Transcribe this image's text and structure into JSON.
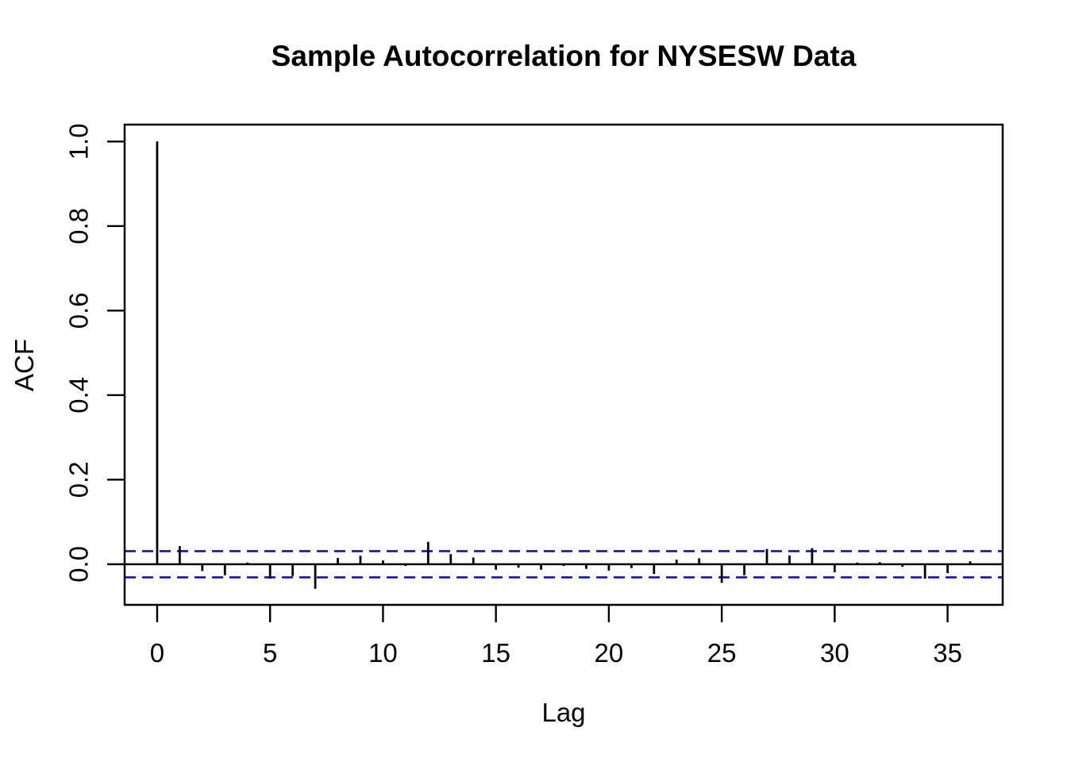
{
  "chart": {
    "title": "Sample Autocorrelation for NYSESW Data",
    "xlabel": "Lag",
    "ylabel": "ACF"
  },
  "chart_data": {
    "type": "bar",
    "subtype": "acf-stem-plot",
    "title": "Sample Autocorrelation for NYSESW Data",
    "xlabel": "Lag",
    "ylabel": "ACF",
    "x": [
      0,
      1,
      2,
      3,
      4,
      5,
      6,
      7,
      8,
      9,
      10,
      11,
      12,
      13,
      14,
      15,
      16,
      17,
      18,
      19,
      20,
      21,
      22,
      23,
      24,
      25,
      26,
      27,
      28,
      29,
      30,
      31,
      32,
      33,
      34,
      35,
      36
    ],
    "values": [
      1.0,
      0.043,
      -0.016,
      -0.026,
      0.004,
      -0.034,
      -0.028,
      -0.058,
      0.015,
      0.02,
      0.009,
      -0.004,
      0.053,
      0.024,
      0.016,
      -0.013,
      -0.008,
      -0.013,
      -0.004,
      -0.011,
      -0.015,
      -0.009,
      -0.023,
      0.011,
      0.014,
      -0.044,
      -0.026,
      0.036,
      0.021,
      0.038,
      -0.019,
      0.004,
      0.005,
      -0.006,
      -0.034,
      -0.021,
      0.007
    ],
    "confidence_bound": 0.031,
    "confidence_line_style": "dashed",
    "confidence_line_color": "#0000EE",
    "bar_color": "#000000",
    "x_ticks": [
      "0",
      "5",
      "10",
      "15",
      "20",
      "25",
      "30",
      "35"
    ],
    "y_ticks": [
      "0.0",
      "0.2",
      "0.4",
      "0.6",
      "0.8",
      "1.0"
    ],
    "xlim": [
      -1.44,
      37.44
    ],
    "ylim": [
      -0.096,
      1.04
    ],
    "grid": false,
    "legend": null,
    "zero_line": 0
  }
}
